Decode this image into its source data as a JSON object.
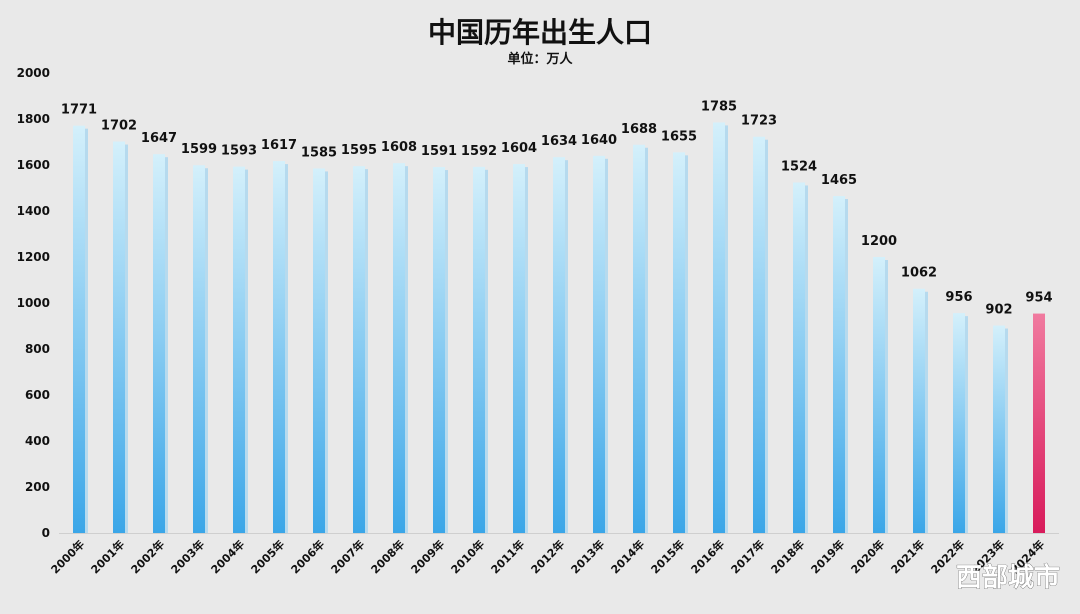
{
  "watermark": "西部城市",
  "chart_data": {
    "type": "bar",
    "title": "中国历年出生人口",
    "subtitle": "单位：万人",
    "xlabel": "",
    "ylabel": "",
    "ylim": [
      0,
      2000
    ],
    "yticks": [
      0,
      200,
      400,
      600,
      800,
      1000,
      1200,
      1400,
      1600,
      1800,
      2000
    ],
    "grid": false,
    "categories": [
      "2000年",
      "2001年",
      "2002年",
      "2003年",
      "2004年",
      "2005年",
      "2006年",
      "2007年",
      "2008年",
      "2009年",
      "2010年",
      "2011年",
      "2012年",
      "2013年",
      "2014年",
      "2015年",
      "2016年",
      "2017年",
      "2018年",
      "2019年",
      "2020年",
      "2021年",
      "2022年",
      "2023年",
      "2024年"
    ],
    "values": [
      1771,
      1702,
      1647,
      1599,
      1593,
      1617,
      1585,
      1595,
      1608,
      1591,
      1592,
      1604,
      1634,
      1640,
      1688,
      1655,
      1785,
      1723,
      1524,
      1465,
      1200,
      1062,
      956,
      902,
      954
    ],
    "colors": {
      "bar_top": "#d4f0fb",
      "bar_bottom": "#3aa6e8",
      "highlight_top": "#f07a9f",
      "highlight_bottom": "#d81b5b"
    }
  }
}
